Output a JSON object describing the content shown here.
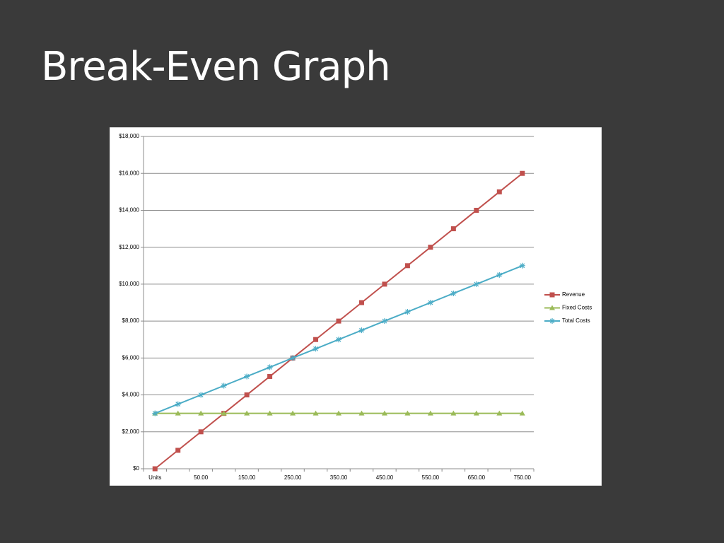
{
  "slide": {
    "title": "Break-Even Graph"
  },
  "chart_data": {
    "type": "line",
    "categories": [
      "Units",
      null,
      "50.00",
      null,
      "150.00",
      null,
      "250.00",
      null,
      "350.00",
      null,
      "450.00",
      null,
      "550.00",
      null,
      "650.00",
      null,
      "750.00"
    ],
    "series": [
      {
        "name": "Revenue",
        "color": "#c0504d",
        "marker": "square",
        "values": [
          0,
          1000,
          2000,
          3000,
          4000,
          5000,
          6000,
          7000,
          8000,
          9000,
          10000,
          11000,
          12000,
          13000,
          14000,
          15000,
          16000
        ]
      },
      {
        "name": "Fixed Costs",
        "color": "#9bbb59",
        "marker": "triangle",
        "values": [
          3000,
          3000,
          3000,
          3000,
          3000,
          3000,
          3000,
          3000,
          3000,
          3000,
          3000,
          3000,
          3000,
          3000,
          3000,
          3000,
          3000
        ]
      },
      {
        "name": "Total Costs",
        "color": "#4bacc6",
        "marker": "star",
        "values": [
          3000,
          3500,
          4000,
          4500,
          5000,
          5500,
          6000,
          6500,
          7000,
          7500,
          8000,
          8500,
          9000,
          9500,
          10000,
          10500,
          11000
        ]
      }
    ],
    "ylim": [
      0,
      18000
    ],
    "yticks": [
      {
        "value": 0,
        "label": "$0"
      },
      {
        "value": 2000,
        "label": "$2,000"
      },
      {
        "value": 4000,
        "label": "$4,000"
      },
      {
        "value": 6000,
        "label": "$6,000"
      },
      {
        "value": 8000,
        "label": "$8,000"
      },
      {
        "value": 10000,
        "label": "$10,000"
      },
      {
        "value": 12000,
        "label": "$12,000"
      },
      {
        "value": 14000,
        "label": "$14,000"
      },
      {
        "value": 16000,
        "label": "$16,000"
      },
      {
        "value": 18000,
        "label": "$18,000"
      }
    ],
    "grid": true,
    "legend": "right"
  }
}
